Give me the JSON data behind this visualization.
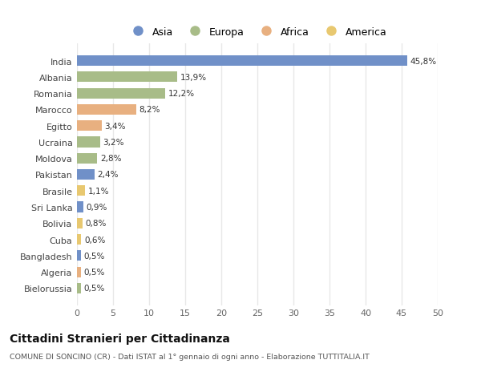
{
  "categories": [
    "India",
    "Albania",
    "Romania",
    "Marocco",
    "Egitto",
    "Ucraina",
    "Moldova",
    "Pakistan",
    "Brasile",
    "Sri Lanka",
    "Bolivia",
    "Cuba",
    "Bangladesh",
    "Algeria",
    "Bielorussia"
  ],
  "values": [
    45.8,
    13.9,
    12.2,
    8.2,
    3.4,
    3.2,
    2.8,
    2.4,
    1.1,
    0.9,
    0.8,
    0.6,
    0.5,
    0.5,
    0.5
  ],
  "labels": [
    "45,8%",
    "13,9%",
    "12,2%",
    "8,2%",
    "3,4%",
    "3,2%",
    "2,8%",
    "2,4%",
    "1,1%",
    "0,9%",
    "0,8%",
    "0,6%",
    "0,5%",
    "0,5%",
    "0,5%"
  ],
  "colors": [
    "#7090c8",
    "#a8bc88",
    "#a8bc88",
    "#e8b080",
    "#e8b080",
    "#a8bc88",
    "#a8bc88",
    "#7090c8",
    "#e8c870",
    "#7090c8",
    "#e8c870",
    "#e8c870",
    "#7090c8",
    "#e8b080",
    "#a8bc88"
  ],
  "legend_labels": [
    "Asia",
    "Europa",
    "Africa",
    "America"
  ],
  "legend_colors": [
    "#7090c8",
    "#a8bc88",
    "#e8b080",
    "#e8c870"
  ],
  "title": "Cittadini Stranieri per Cittadinanza",
  "subtitle": "COMUNE DI SONCINO (CR) - Dati ISTAT al 1° gennaio di ogni anno - Elaborazione TUTTITALIA.IT",
  "xlim": [
    0,
    50
  ],
  "xticks": [
    0,
    5,
    10,
    15,
    20,
    25,
    30,
    35,
    40,
    45,
    50
  ],
  "background_color": "#ffffff",
  "grid_color": "#e8e8e8",
  "bar_height": 0.65
}
